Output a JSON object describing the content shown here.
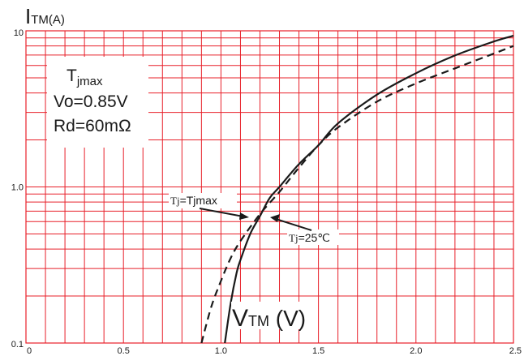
{
  "chart_data": {
    "type": "line",
    "y_axis_label": {
      "main": "I",
      "sub": "TM(A)"
    },
    "x_axis_label": {
      "main": "V",
      "sub": "TM",
      "unit": " (V)"
    },
    "x_ticks": [
      "0",
      "0.5",
      "1.0",
      "1.5",
      "2.0",
      "2.5"
    ],
    "y_ticks": [
      "0.1",
      "1.0",
      "10"
    ],
    "xlim": [
      0,
      2.5
    ],
    "ylim": [
      0.1,
      10
    ],
    "yscale": "log",
    "grid": true,
    "info_box": {
      "line1_main": "T",
      "line1_sub": "jmax",
      "line2": "Vo=0.85V",
      "line3": "Rd=60mΩ"
    },
    "annotations": [
      {
        "prefix": "Tj",
        "text": "=Tjmax",
        "points_to": "Tj=Tjmax"
      },
      {
        "prefix": "Tj",
        "text": "=25℃",
        "points_to": "Tj=25℃"
      }
    ],
    "series": [
      {
        "style": "dashed",
        "x": [
          0.9,
          0.95,
          1.0,
          1.05,
          1.1,
          1.2,
          1.3,
          1.4,
          1.5,
          1.6,
          1.8,
          2.0,
          2.2,
          2.4,
          2.5
        ],
        "y": [
          0.1,
          0.17,
          0.25,
          0.35,
          0.45,
          0.67,
          0.93,
          1.33,
          1.85,
          2.4,
          3.52,
          4.6,
          5.75,
          7.15,
          8.0
        ]
      },
      {
        "style": "solid",
        "x": [
          1.02,
          1.05,
          1.08,
          1.1,
          1.15,
          1.2,
          1.25,
          1.3,
          1.4,
          1.5,
          1.6,
          1.8,
          2.0,
          2.2,
          2.4,
          2.5
        ],
        "y": [
          0.1,
          0.18,
          0.28,
          0.34,
          0.5,
          0.65,
          0.85,
          1.0,
          1.4,
          1.85,
          2.55,
          3.9,
          5.35,
          6.95,
          8.55,
          9.3
        ]
      }
    ],
    "colors": {
      "grid": "#e8202a",
      "curve": "#1a1a1a"
    }
  }
}
